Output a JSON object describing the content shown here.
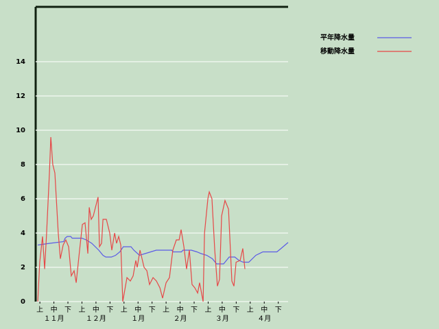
{
  "chart_data": {
    "type": "line",
    "xlim": [
      0,
      180
    ],
    "xticks": [
      {
        "value": 3,
        "label": "上"
      },
      {
        "value": 13,
        "label": "中"
      },
      {
        "value": 23,
        "label": "下"
      },
      {
        "value": 33,
        "label": "上"
      },
      {
        "value": 43,
        "label": "中"
      },
      {
        "value": 53,
        "label": "下"
      },
      {
        "value": 63,
        "label": "上"
      },
      {
        "value": 73,
        "label": "中"
      },
      {
        "value": 83,
        "label": "下"
      },
      {
        "value": 93,
        "label": "上"
      },
      {
        "value": 103,
        "label": "中"
      },
      {
        "value": 113,
        "label": "下"
      },
      {
        "value": 123,
        "label": "上"
      },
      {
        "value": 133,
        "label": "中"
      },
      {
        "value": 143,
        "label": "下"
      },
      {
        "value": 153,
        "label": "上"
      },
      {
        "value": 163,
        "label": "中"
      },
      {
        "value": 173,
        "label": "下"
      }
    ],
    "month_ticks": [
      {
        "value": 13,
        "label": "１１月"
      },
      {
        "value": 43,
        "label": "１２月"
      },
      {
        "value": 73,
        "label": "１月"
      },
      {
        "value": 103,
        "label": "２月"
      },
      {
        "value": 133,
        "label": "３月"
      },
      {
        "value": 163,
        "label": "４月"
      }
    ],
    "ylim": [
      0,
      17.2
    ],
    "yticks": [
      0,
      2,
      4,
      6,
      8,
      10,
      12,
      14
    ],
    "grid": true,
    "legend": "upper right",
    "series": [
      {
        "name": "平年降水量",
        "color": "#5a5ae6",
        "x": [
          1.5,
          10,
          20,
          21,
          22.5,
          25,
          26,
          33,
          36,
          40,
          45,
          48,
          50,
          54,
          57,
          60,
          62.5,
          68,
          70,
          74,
          78,
          82,
          86,
          97,
          98,
          104,
          105,
          111,
          115,
          118,
          122,
          126,
          129,
          134,
          138,
          142,
          145,
          148,
          152,
          157,
          162,
          172,
          175,
          180
        ],
        "values": [
          3.3,
          3.4,
          3.5,
          3.7,
          3.8,
          3.8,
          3.7,
          3.7,
          3.6,
          3.4,
          3.0,
          2.7,
          2.6,
          2.6,
          2.7,
          2.9,
          3.2,
          3.2,
          3.0,
          2.7,
          2.8,
          2.9,
          3.0,
          3.0,
          2.9,
          2.9,
          3.0,
          3.0,
          2.9,
          2.8,
          2.7,
          2.5,
          2.2,
          2.2,
          2.6,
          2.6,
          2.4,
          2.3,
          2.3,
          2.7,
          2.9,
          2.9,
          3.1,
          3.45
        ]
      },
      {
        "name": "移動降水量",
        "color": "#e64646",
        "x": [
          1.5,
          2.9,
          4.9,
          6.4,
          7.8,
          9.8,
          10.8,
          12.2,
          13.7,
          16.1,
          17.6,
          19.6,
          21.5,
          23.5,
          25.4,
          27.4,
          28.9,
          30.8,
          33.3,
          35.2,
          37.2,
          38.2,
          39.6,
          41.1,
          44.5,
          45.5,
          47,
          48,
          50.4,
          52.8,
          54.3,
          56.3,
          57.7,
          59.2,
          60.7,
          62.1,
          65.1,
          67.5,
          69.5,
          71.4,
          72.4,
          74.4,
          77.3,
          79.3,
          81.2,
          83.7,
          86.1,
          88.6,
          90.5,
          93,
          95.4,
          97.8,
          100.3,
          102.3,
          103.7,
          105.7,
          107.6,
          109.6,
          111.5,
          113.5,
          115.5,
          116.9,
          119.4,
          120.4,
          122.8,
          123.8,
          125.7,
          127.7,
          129.6,
          131.1,
          132.6,
          135,
          137.5,
          139.9,
          141.4,
          142.9,
          145.8,
          147.7,
          149.2
        ],
        "values": [
          0,
          2.3,
          3.8,
          1.9,
          4,
          7.5,
          9.6,
          8,
          7.5,
          4,
          2.5,
          3.3,
          3.6,
          3.2,
          1.5,
          1.8,
          1.1,
          2.6,
          4.5,
          4.6,
          2.8,
          5.5,
          4.8,
          5,
          6.1,
          3.2,
          3.4,
          4.8,
          4.8,
          4.0,
          3.0,
          4.0,
          3.4,
          3.8,
          3.3,
          0,
          1.4,
          1.2,
          1.5,
          2.4,
          2.0,
          3.0,
          2.0,
          1.8,
          1.0,
          1.4,
          1.2,
          0.8,
          0.2,
          1.1,
          1.4,
          3.0,
          3.6,
          3.6,
          4.2,
          3.2,
          1.9,
          3.0,
          1.0,
          0.8,
          0.5,
          1.1,
          0,
          4,
          6,
          6.4,
          6,
          3,
          0.9,
          1.3,
          5,
          5.9,
          5.4,
          1.2,
          0.9,
          2.3,
          2.4,
          3.1,
          1.9
        ]
      }
    ]
  }
}
